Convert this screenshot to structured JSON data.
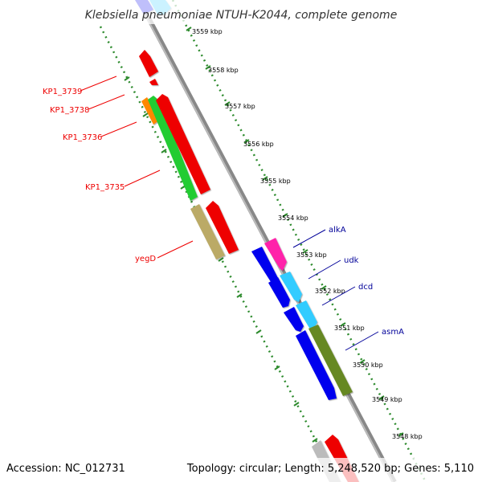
{
  "title": "Klebsiella pneumoniae NTUH-K2044, complete genome",
  "footer": {
    "accession": "Accession: NC_012731",
    "summary": "Topology: circular; Length: 5,248,520 bp; Genes: 5,110"
  },
  "scale_ticks": [
    "3559 kbp",
    "3558 kbp",
    "3557 kbp",
    "3556 kbp",
    "3555 kbp",
    "3554 kbp",
    "3553 kbp",
    "3552 kbp",
    "3551 kbp",
    "3550 kbp",
    "3549 kbp",
    "3548 kbp"
  ],
  "colors": {
    "reverse_label": "#ee0000",
    "forward_label": "#000099",
    "backbone": "#999999",
    "dots": "#2e8b2e"
  },
  "reverse_genes": [
    {
      "label": "KP1_3739",
      "color": "#ee0000"
    },
    {
      "label": "KP1_3738",
      "color": "#ee0000"
    },
    {
      "label": "KP1_3736",
      "color": "#ee0000"
    },
    {
      "label": "KP1_3735",
      "color": "#ee0000"
    },
    {
      "label": "yegD",
      "color": "#ee0000"
    }
  ],
  "forward_genes": [
    {
      "label": "alkA",
      "color": "#000099"
    },
    {
      "label": "udk",
      "color": "#000099"
    },
    {
      "label": "dcd",
      "color": "#000099"
    },
    {
      "label": "asmA",
      "color": "#000099"
    }
  ]
}
